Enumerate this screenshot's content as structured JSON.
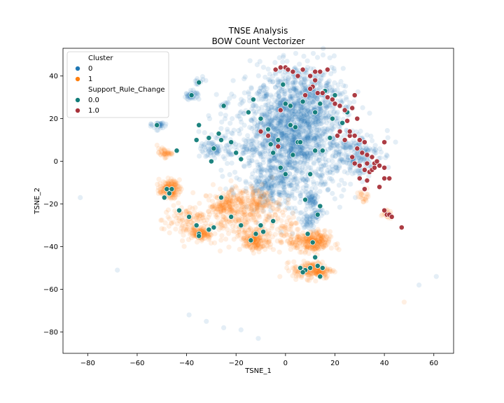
{
  "chart_data": {
    "type": "scatter",
    "title": "TNSE Analysis",
    "subtitle": "BOW Count Vectorizer",
    "xlabel": "TSNE_1",
    "ylabel": "TSNE_2",
    "xlim": [
      -90,
      68
    ],
    "ylim": [
      -90,
      53
    ],
    "xticks": [
      -80,
      -60,
      -40,
      -20,
      0,
      20,
      40,
      60
    ],
    "yticks": [
      -80,
      -60,
      -40,
      -20,
      0,
      20,
      40
    ],
    "grid": false,
    "legend_position": "top-left",
    "legend": {
      "hue_title": "Cluster",
      "hue_entries": [
        {
          "label": "0",
          "color": "#1f77b4"
        },
        {
          "label": "1",
          "color": "#ff7f0e"
        }
      ],
      "style_title": "Support_Rule_Change",
      "style_entries": [
        {
          "label": "0.0",
          "color": "#117c78"
        },
        {
          "label": "1.0",
          "color": "#a8323a"
        }
      ]
    },
    "cluster_regions": [
      {
        "cluster": "0",
        "center": [
          2,
          10
        ],
        "spread": [
          11,
          13
        ],
        "count": 1500
      },
      {
        "cluster": "0",
        "center": [
          8,
          30
        ],
        "spread": [
          8,
          8
        ],
        "count": 420
      },
      {
        "cluster": "0",
        "center": [
          28,
          3
        ],
        "spread": [
          5,
          5
        ],
        "count": 200
      },
      {
        "cluster": "0",
        "center": [
          -28,
          6
        ],
        "spread": [
          3,
          2.5
        ],
        "count": 90
      },
      {
        "cluster": "0",
        "center": [
          -38,
          31
        ],
        "spread": [
          1.5,
          1
        ],
        "count": 40
      },
      {
        "cluster": "0",
        "center": [
          -51,
          17
        ],
        "spread": [
          1.5,
          1
        ],
        "count": 30
      },
      {
        "cluster": "0",
        "center": [
          -35,
          37
        ],
        "spread": [
          1,
          1
        ],
        "count": 15
      },
      {
        "cluster": "0",
        "center": [
          10,
          -18
        ],
        "spread": [
          1.5,
          1.5
        ],
        "count": 50
      },
      {
        "cluster": "0",
        "center": [
          12,
          -25
        ],
        "spread": [
          2,
          2
        ],
        "count": 40
      },
      {
        "cluster": "0",
        "center": [
          -25,
          26
        ],
        "spread": [
          1,
          1
        ],
        "count": 12
      },
      {
        "cluster": "0",
        "center": [
          -5,
          -12
        ],
        "spread": [
          6,
          4
        ],
        "count": 150
      },
      {
        "cluster": "0",
        "center": [
          9,
          -29
        ],
        "spread": [
          1.5,
          1.5
        ],
        "count": 30
      },
      {
        "cluster": "1",
        "center": [
          -47,
          -13
        ],
        "spread": [
          2,
          2
        ],
        "count": 160
      },
      {
        "cluster": "1",
        "center": [
          -34,
          -34
        ],
        "spread": [
          2,
          1.5
        ],
        "count": 90
      },
      {
        "cluster": "1",
        "center": [
          -25,
          -20
        ],
        "spread": [
          2,
          2
        ],
        "count": 70
      },
      {
        "cluster": "1",
        "center": [
          -12,
          -37
        ],
        "spread": [
          3,
          2.5
        ],
        "count": 170
      },
      {
        "cluster": "1",
        "center": [
          11,
          -38
        ],
        "spread": [
          3.5,
          2.5
        ],
        "count": 240
      },
      {
        "cluster": "1",
        "center": [
          11,
          -51
        ],
        "spread": [
          4,
          2
        ],
        "count": 200
      },
      {
        "cluster": "1",
        "center": [
          -18,
          -24
        ],
        "spread": [
          8,
          6
        ],
        "count": 320
      },
      {
        "cluster": "1",
        "center": [
          -49,
          4
        ],
        "spread": [
          1.5,
          1
        ],
        "count": 40
      },
      {
        "cluster": "1",
        "center": [
          -40,
          -28
        ],
        "spread": [
          5,
          4
        ],
        "count": 120
      },
      {
        "cluster": "1",
        "center": [
          0,
          -34
        ],
        "spread": [
          3,
          4
        ],
        "count": 60
      },
      {
        "cluster": "1",
        "center": [
          -12,
          -18
        ],
        "spread": [
          4,
          3
        ],
        "count": 80
      },
      {
        "cluster": "1",
        "center": [
          41,
          -25
        ],
        "spread": [
          1,
          1
        ],
        "count": 20
      },
      {
        "cluster": "1",
        "center": [
          32,
          -16
        ],
        "spread": [
          1.5,
          1.5
        ],
        "count": 20
      }
    ],
    "outliers": [
      {
        "cluster": "0",
        "x": -83,
        "y": -17
      },
      {
        "cluster": "0",
        "x": -68,
        "y": -51
      },
      {
        "cluster": "0",
        "x": -39,
        "y": -72
      },
      {
        "cluster": "0",
        "x": -32,
        "y": -75
      },
      {
        "cluster": "0",
        "x": -25,
        "y": -78
      },
      {
        "cluster": "0",
        "x": -18,
        "y": -79
      },
      {
        "cluster": "0",
        "x": -11,
        "y": -83
      },
      {
        "cluster": "0",
        "x": 54,
        "y": -58
      },
      {
        "cluster": "0",
        "x": 61,
        "y": -54
      },
      {
        "cluster": "1",
        "x": 48,
        "y": -66
      },
      {
        "cluster": "1",
        "x": 47,
        "y": -31
      }
    ],
    "support_rule_change": {
      "0.0": [
        [
          -52,
          17
        ],
        [
          -35,
          37
        ],
        [
          -38,
          31
        ],
        [
          -29,
          6
        ],
        [
          -25,
          26
        ],
        [
          -31,
          11
        ],
        [
          -36,
          10
        ],
        [
          -44,
          5
        ],
        [
          -30,
          0
        ],
        [
          -27,
          13
        ],
        [
          -22,
          9
        ],
        [
          -20,
          4
        ],
        [
          -18,
          1
        ],
        [
          -35,
          17
        ],
        [
          -48,
          -13
        ],
        [
          -47,
          -15
        ],
        [
          -46,
          -13
        ],
        [
          -49,
          -17
        ],
        [
          -43,
          -23
        ],
        [
          -39,
          -26
        ],
        [
          -36,
          -30
        ],
        [
          -35,
          -34
        ],
        [
          -35,
          -35
        ],
        [
          -31,
          -32
        ],
        [
          -29,
          -31
        ],
        [
          -26,
          -17
        ],
        [
          -22,
          -26
        ],
        [
          -18,
          -30
        ],
        [
          -14,
          -37
        ],
        [
          -12,
          -34
        ],
        [
          -10,
          -30
        ],
        [
          -9,
          -33
        ],
        [
          -5,
          -28
        ],
        [
          -15,
          23
        ],
        [
          -10,
          20
        ],
        [
          -7,
          15
        ],
        [
          -5,
          4
        ],
        [
          -3,
          10
        ],
        [
          -2,
          -3
        ],
        [
          0,
          -6
        ],
        [
          0,
          27
        ],
        [
          2,
          17
        ],
        [
          3,
          3
        ],
        [
          5,
          9
        ],
        [
          6,
          9
        ],
        [
          7,
          28
        ],
        [
          8,
          -18
        ],
        [
          10,
          -6
        ],
        [
          12,
          5
        ],
        [
          12,
          23
        ],
        [
          14,
          -21
        ],
        [
          14,
          27
        ],
        [
          16,
          33
        ],
        [
          18,
          11
        ],
        [
          20,
          31
        ],
        [
          23,
          18
        ],
        [
          25,
          23
        ],
        [
          9,
          -34
        ],
        [
          11,
          -38
        ],
        [
          12,
          -45
        ],
        [
          13,
          -49
        ],
        [
          10,
          -50
        ],
        [
          8,
          -51
        ],
        [
          7,
          -52
        ],
        [
          6,
          -50
        ],
        [
          14,
          -54
        ],
        [
          15,
          -50
        ],
        [
          4,
          16
        ],
        [
          -1,
          36
        ],
        [
          -13,
          29
        ],
        [
          19,
          20
        ],
        [
          2,
          26
        ],
        [
          15,
          5
        ],
        [
          -6,
          8
        ],
        [
          13,
          -25
        ],
        [
          -26,
          10
        ]
      ],
      "1.0": [
        [
          -2,
          44
        ],
        [
          0,
          44
        ],
        [
          1,
          43
        ],
        [
          3,
          42
        ],
        [
          5,
          40
        ],
        [
          7,
          43
        ],
        [
          10,
          40
        ],
        [
          12,
          42
        ],
        [
          14,
          42
        ],
        [
          11,
          35
        ],
        [
          13,
          32
        ],
        [
          15,
          32
        ],
        [
          17,
          30
        ],
        [
          19,
          29
        ],
        [
          20,
          27
        ],
        [
          22,
          26
        ],
        [
          24,
          24
        ],
        [
          21,
          12
        ],
        [
          24,
          10
        ],
        [
          26,
          12
        ],
        [
          28,
          12
        ],
        [
          30,
          10
        ],
        [
          32,
          9
        ],
        [
          29,
          6
        ],
        [
          31,
          4
        ],
        [
          33,
          3
        ],
        [
          35,
          2
        ],
        [
          28,
          -1
        ],
        [
          30,
          -2
        ],
        [
          32,
          -4
        ],
        [
          34,
          -5
        ],
        [
          36,
          -1
        ],
        [
          38,
          -2
        ],
        [
          40,
          -3
        ],
        [
          30,
          -8
        ],
        [
          33,
          -9
        ],
        [
          38,
          -12
        ],
        [
          40,
          -8
        ],
        [
          42,
          -8
        ],
        [
          41,
          -25
        ],
        [
          42,
          -25
        ],
        [
          40,
          -23
        ],
        [
          47,
          -31
        ],
        [
          32,
          -13
        ],
        [
          28,
          31
        ],
        [
          25,
          19
        ],
        [
          27,
          25
        ],
        [
          -10,
          14
        ],
        [
          -7,
          12
        ],
        [
          -3,
          7
        ],
        [
          12,
          38
        ],
        [
          17,
          43
        ],
        [
          -4,
          43
        ],
        [
          10,
          34
        ],
        [
          -2,
          24
        ],
        [
          26,
          14
        ],
        [
          22,
          14
        ],
        [
          35,
          -4
        ],
        [
          33,
          -1
        ],
        [
          27,
          2
        ],
        [
          29,
          20
        ],
        [
          37,
          0
        ],
        [
          36,
          -3
        ],
        [
          43,
          -26
        ],
        [
          8,
          31
        ],
        [
          40,
          9
        ]
      ]
    }
  }
}
